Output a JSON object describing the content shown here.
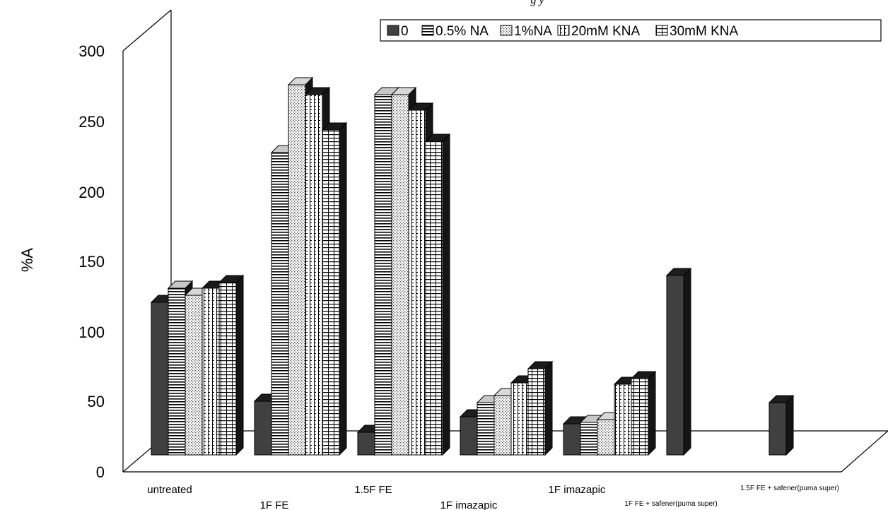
{
  "top_caption": "g                                            y",
  "chart_data": {
    "type": "bar",
    "ylabel": "%A",
    "ylim": [
      0,
      300
    ],
    "yticks": [
      "0",
      "50",
      "100",
      "150",
      "200",
      "250",
      "300"
    ],
    "categories": [
      "untreated",
      "1F FE",
      "1.5F FE",
      "1F imazapic",
      "1F imazapic",
      "1F FE + safener(puma super)",
      "1.5F FE + safener(puma super)"
    ],
    "series": [
      {
        "name": "0",
        "pattern": "solid",
        "values": [
          108,
          38,
          16,
          27,
          22,
          127,
          37
        ]
      },
      {
        "name": "0.5% NA",
        "pattern": "hlines",
        "values": [
          118,
          214,
          255,
          37,
          23,
          null,
          null
        ]
      },
      {
        "name": "1%NA",
        "pattern": "dots",
        "values": [
          113,
          262,
          255,
          42,
          25,
          null,
          null
        ]
      },
      {
        "name": "20mM KNA",
        "pattern": "dashgrid",
        "values": [
          118,
          255,
          244,
          51,
          50,
          null,
          null
        ]
      },
      {
        "name": "30mM KNA",
        "pattern": "grid",
        "values": [
          122,
          230,
          222,
          61,
          54,
          null,
          null
        ]
      }
    ],
    "grid": false,
    "legend_position": "top-right"
  }
}
